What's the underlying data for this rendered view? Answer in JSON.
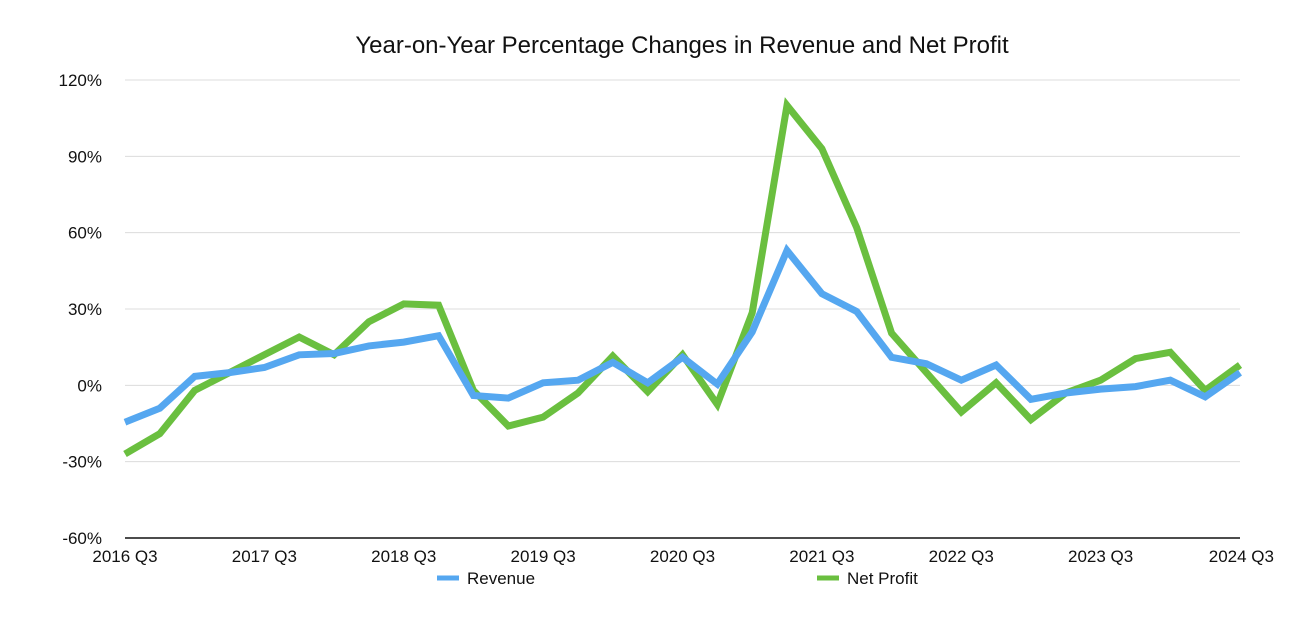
{
  "chart_data": {
    "type": "line",
    "title": "Year-on-Year Percentage Changes in Revenue and Net Profit",
    "xlabel": "",
    "ylabel": "",
    "ylim": [
      -60,
      120
    ],
    "yticks": [
      "120%",
      "90%",
      "60%",
      "30%",
      "0%",
      "-30%",
      "-60%"
    ],
    "ytick_values": [
      120,
      90,
      60,
      30,
      0,
      -30,
      -60
    ],
    "grid": true,
    "legend_position": "bottom",
    "categories": [
      "2016 Q3",
      "2016 Q4",
      "2017 Q1",
      "2017 Q2",
      "2017 Q3",
      "2017 Q4",
      "2018 Q1",
      "2018 Q2",
      "2018 Q3",
      "2018 Q4",
      "2019 Q1",
      "2019 Q2",
      "2019 Q3",
      "2019 Q4",
      "2020 Q1",
      "2020 Q2",
      "2020 Q3",
      "2020 Q4",
      "2021 Q1",
      "2021 Q2",
      "2021 Q3",
      "2021 Q4",
      "2022 Q1",
      "2022 Q2",
      "2022 Q3",
      "2022 Q4",
      "2023 Q1",
      "2023 Q2",
      "2023 Q3",
      "2023 Q4",
      "2024 Q1",
      "2024 Q2",
      "2024 Q3"
    ],
    "xtick_labels": [
      "2016 Q3",
      "2017 Q3",
      "2018 Q3",
      "2019 Q3",
      "2020 Q3",
      "2021 Q3",
      "2022 Q3",
      "2023 Q3",
      "2024 Q3"
    ],
    "xtick_indices": [
      0,
      4,
      8,
      12,
      16,
      20,
      24,
      28,
      32
    ],
    "series": [
      {
        "name": "Revenue",
        "color": "#55a7f0",
        "values": [
          -14.5,
          -9,
          3.5,
          5,
          7,
          12,
          12.5,
          15.5,
          17,
          19.5,
          -4,
          -5,
          1,
          2,
          9,
          1,
          11,
          0.5,
          21,
          53,
          36,
          29,
          11,
          8.5,
          2,
          8,
          -5.5,
          -3,
          -1.5,
          -0.5,
          2,
          -4.5,
          5
        ]
      },
      {
        "name": "Net Profit",
        "color": "#6abf3f",
        "values": [
          -27,
          -19,
          -2,
          5,
          12,
          19,
          12,
          25,
          32,
          31.5,
          -2,
          -16,
          -12.5,
          -3,
          11.5,
          -2.5,
          12,
          -7.5,
          28.5,
          110,
          93,
          62,
          20.5,
          5,
          -10.5,
          1,
          -13.5,
          -3,
          2,
          10.5,
          13,
          -2,
          8
        ]
      }
    ]
  }
}
